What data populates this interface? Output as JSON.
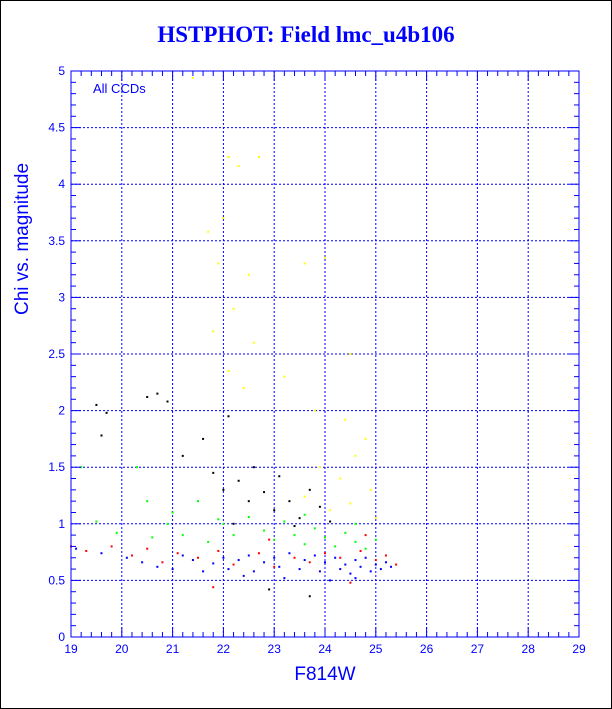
{
  "title": "HSTPHOT: Field lmc_u4b106",
  "chart_data": {
    "type": "scatter",
    "title": "HSTPHOT: Field lmc_u4b106",
    "xlabel": "F814W",
    "ylabel": "Chi vs. magnitude",
    "xlim": [
      19,
      29
    ],
    "ylim": [
      0,
      5
    ],
    "xticks": [
      "19",
      "20",
      "21",
      "22",
      "23",
      "24",
      "25",
      "26",
      "27",
      "28",
      "29"
    ],
    "yticks": [
      "0",
      "0.5",
      "1",
      "1.5",
      "2",
      "2.5",
      "3",
      "3.5",
      "4",
      "4.5",
      "5"
    ],
    "grid": true,
    "annotation": "All CCDs",
    "colors": {
      "axis": "#0000ff",
      "grid": "#0000ff"
    },
    "series": [
      {
        "color": "#0000ff",
        "points": [
          [
            19.1,
            0.78
          ],
          [
            19.6,
            0.74
          ],
          [
            20.1,
            0.7
          ],
          [
            20.4,
            0.66
          ],
          [
            20.7,
            0.62
          ],
          [
            21.0,
            0.6
          ],
          [
            21.2,
            0.72
          ],
          [
            21.4,
            0.68
          ],
          [
            21.6,
            0.58
          ],
          [
            21.8,
            0.65
          ],
          [
            22.0,
            0.7
          ],
          [
            22.1,
            0.6
          ],
          [
            22.3,
            0.68
          ],
          [
            22.5,
            0.72
          ],
          [
            22.6,
            0.58
          ],
          [
            22.8,
            0.66
          ],
          [
            23.0,
            0.7
          ],
          [
            23.1,
            0.62
          ],
          [
            23.3,
            0.74
          ],
          [
            23.5,
            0.6
          ],
          [
            23.6,
            0.68
          ],
          [
            23.8,
            0.72
          ],
          [
            23.9,
            0.58
          ],
          [
            24.0,
            0.66
          ],
          [
            24.2,
            0.7
          ],
          [
            24.3,
            0.6
          ],
          [
            24.4,
            0.64
          ],
          [
            24.5,
            0.56
          ],
          [
            24.6,
            0.68
          ],
          [
            24.7,
            0.62
          ],
          [
            24.8,
            0.7
          ],
          [
            24.9,
            0.58
          ],
          [
            25.0,
            0.64
          ],
          [
            25.1,
            0.6
          ],
          [
            25.2,
            0.66
          ],
          [
            25.3,
            0.62
          ],
          [
            23.2,
            0.52
          ],
          [
            24.1,
            0.5
          ],
          [
            24.6,
            0.52
          ],
          [
            22.4,
            0.54
          ]
        ]
      },
      {
        "color": "#ff0000",
        "points": [
          [
            19.0,
            0.8
          ],
          [
            19.3,
            0.76
          ],
          [
            19.8,
            0.8
          ],
          [
            20.2,
            0.72
          ],
          [
            20.5,
            0.78
          ],
          [
            20.8,
            0.66
          ],
          [
            21.1,
            0.74
          ],
          [
            21.5,
            0.7
          ],
          [
            21.9,
            0.76
          ],
          [
            22.2,
            0.64
          ],
          [
            22.7,
            0.74
          ],
          [
            23.0,
            0.62
          ],
          [
            23.4,
            0.7
          ],
          [
            23.7,
            0.66
          ],
          [
            24.0,
            0.74
          ],
          [
            24.3,
            0.7
          ],
          [
            24.7,
            0.76
          ],
          [
            25.0,
            0.68
          ],
          [
            25.2,
            0.72
          ],
          [
            25.4,
            0.64
          ],
          [
            24.8,
            0.9
          ],
          [
            22.9,
            0.86
          ],
          [
            21.8,
            0.44
          ],
          [
            24.5,
            0.48
          ]
        ]
      },
      {
        "color": "#00ff00",
        "points": [
          [
            19.2,
            1.5
          ],
          [
            19.5,
            1.02
          ],
          [
            19.9,
            0.92
          ],
          [
            20.3,
            1.5
          ],
          [
            20.6,
            0.88
          ],
          [
            20.9,
            1.0
          ],
          [
            21.2,
            0.9
          ],
          [
            21.5,
            1.2
          ],
          [
            21.7,
            0.84
          ],
          [
            22.0,
            1.0
          ],
          [
            22.2,
            0.9
          ],
          [
            22.5,
            1.06
          ],
          [
            22.8,
            0.94
          ],
          [
            23.0,
            0.86
          ],
          [
            23.2,
            1.02
          ],
          [
            23.4,
            0.9
          ],
          [
            23.6,
            0.82
          ],
          [
            23.8,
            0.96
          ],
          [
            24.0,
            0.88
          ],
          [
            24.2,
            0.8
          ],
          [
            24.4,
            0.92
          ],
          [
            24.6,
            0.84
          ],
          [
            24.8,
            0.78
          ],
          [
            25.0,
            0.86
          ],
          [
            20.5,
            1.2
          ],
          [
            21.0,
            1.1
          ],
          [
            21.9,
            1.04
          ],
          [
            23.6,
            1.08
          ],
          [
            24.6,
            1.0
          ]
        ]
      },
      {
        "color": "#000000",
        "points": [
          [
            19.5,
            2.05
          ],
          [
            19.7,
            1.98
          ],
          [
            20.5,
            2.12
          ],
          [
            20.7,
            2.15
          ],
          [
            20.9,
            2.08
          ],
          [
            21.2,
            1.6
          ],
          [
            21.6,
            1.75
          ],
          [
            21.8,
            1.45
          ],
          [
            22.0,
            1.3
          ],
          [
            22.1,
            1.95
          ],
          [
            22.3,
            1.38
          ],
          [
            22.5,
            1.2
          ],
          [
            22.6,
            1.5
          ],
          [
            22.8,
            1.28
          ],
          [
            23.0,
            1.12
          ],
          [
            23.1,
            1.42
          ],
          [
            23.3,
            1.2
          ],
          [
            23.5,
            1.05
          ],
          [
            23.7,
            1.3
          ],
          [
            23.9,
            1.15
          ],
          [
            24.1,
            1.02
          ],
          [
            22.2,
            1.0
          ],
          [
            23.4,
            0.98
          ],
          [
            19.6,
            1.78
          ],
          [
            22.9,
            0.42
          ],
          [
            23.7,
            0.36
          ]
        ]
      },
      {
        "color": "#ffff00",
        "points": [
          [
            21.4,
            4.94
          ],
          [
            21.7,
            3.58
          ],
          [
            22.1,
            4.24
          ],
          [
            22.3,
            4.16
          ],
          [
            22.7,
            4.24
          ],
          [
            22.0,
            3.7
          ],
          [
            21.9,
            3.3
          ],
          [
            22.5,
            3.2
          ],
          [
            22.2,
            2.9
          ],
          [
            21.8,
            2.7
          ],
          [
            22.6,
            2.6
          ],
          [
            22.1,
            2.35
          ],
          [
            23.6,
            3.3
          ],
          [
            24.0,
            3.35
          ],
          [
            24.5,
            2.5
          ],
          [
            23.8,
            2.0
          ],
          [
            24.4,
            1.92
          ],
          [
            24.8,
            1.75
          ],
          [
            24.6,
            1.6
          ],
          [
            23.9,
            1.5
          ],
          [
            24.3,
            1.4
          ],
          [
            24.9,
            1.3
          ],
          [
            24.5,
            1.18
          ],
          [
            23.6,
            1.24
          ],
          [
            24.1,
            1.12
          ],
          [
            25.0,
            1.05
          ],
          [
            22.4,
            2.2
          ],
          [
            23.2,
            2.3
          ]
        ]
      }
    ]
  }
}
